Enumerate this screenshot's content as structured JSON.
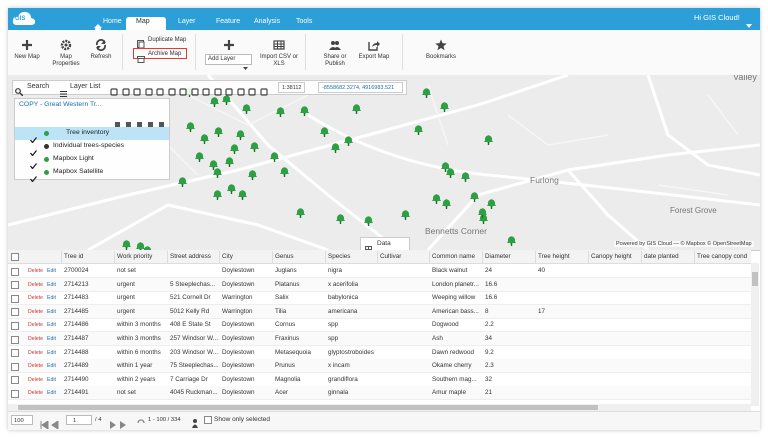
{
  "header": {
    "logo": "GIS",
    "tabs": [
      "Home",
      "Map",
      "Layer",
      "Feature",
      "Analysis",
      "Tools"
    ],
    "user": "Hi GIS Cloud!"
  },
  "ribbon": {
    "buttons": [
      "New Map",
      "Map Properties",
      "Refresh",
      "Duplicate Map",
      "Archive Map",
      "Add Layer",
      "Import CSV or XLS",
      "Share or Publish",
      "Export Map",
      "Bookmarks"
    ]
  },
  "map": {
    "toolbar": {
      "search": "Search",
      "layer_list": "Layer List",
      "scale": "1:38112",
      "coordinates": "-8558682.3274, 4916983.521"
    },
    "layer_panel": {
      "title": "COPY - Great Western Tr...",
      "layers": [
        "Tree inventory",
        "Individual trees-species",
        "Mapbox Light",
        "Mapbox Satellite"
      ]
    },
    "labels": [
      "Valley",
      "Furlong",
      "Forest Grove",
      "Bennetts Corner"
    ],
    "attribution": "Powered by GIS Cloud — © Mapbox © OpenStreetMap",
    "data_tab": "Data"
  },
  "table": {
    "row_actions": [
      "Delete",
      "Edit"
    ],
    "columns": [
      "Tree id",
      "Work priority",
      "Street address",
      "City",
      "Genus",
      "Species",
      "Cultivar",
      "Common name",
      "Diameter",
      "Tree height",
      "Canopy height",
      "date planted",
      "Tree canopy cond"
    ],
    "rows": [
      [
        2700024,
        "not set",
        null,
        "Doylestown",
        "Juglans",
        "nigra",
        null,
        "Black walnut",
        24,
        40
      ],
      [
        2714213,
        "urgent",
        "5 Steeplechas...",
        "Doylestown",
        "Platanus",
        "x acerifolia",
        null,
        "London planetr...",
        16.6
      ],
      [
        2714483,
        "urgent",
        "521 Cornell Dr",
        "Warrington",
        "Salix",
        "babylonica",
        null,
        "Weeping willow",
        16.6
      ],
      [
        2714485,
        "urgent",
        "5012 Kelly Rd",
        "Warrington",
        "Tilia",
        "americana",
        null,
        "American bass...",
        8,
        17
      ],
      [
        2714486,
        "within 3 months",
        "408 E State St",
        "Doylestown",
        "Cornus",
        "spp",
        null,
        "Dogwood",
        2.2
      ],
      [
        2714487,
        "within 3 months",
        "257 Windsor W...",
        "Doylestown",
        "Fraxinus",
        "spp",
        null,
        "Ash",
        34
      ],
      [
        2714488,
        "within 6 months",
        "203 Windsor W...",
        "Doylestown",
        "Metasequoia",
        "glyptostroboides",
        null,
        "Dawn redwood",
        9.2
      ],
      [
        2714489,
        "within 1 year",
        "75 Steeplechas...",
        "Doylestown",
        "Prunus",
        "x incam",
        null,
        "Okame cherry",
        2.3
      ],
      [
        2714490,
        "within 2 years",
        "7 Carriage Dr",
        "Doylestown",
        "Magnolia",
        "grandiflora",
        null,
        "Southern mag...",
        32
      ],
      [
        2714491,
        "not set",
        "4045 Ruckman...",
        "Doylestown",
        "Acer",
        "ginnala",
        null,
        "Amur maple",
        21
      ]
    ]
  },
  "footer": {
    "page_size": "100",
    "page": "1",
    "pages": "/ 4",
    "range": "1 - 100 / 334",
    "show_selected": "Show only selected"
  }
}
